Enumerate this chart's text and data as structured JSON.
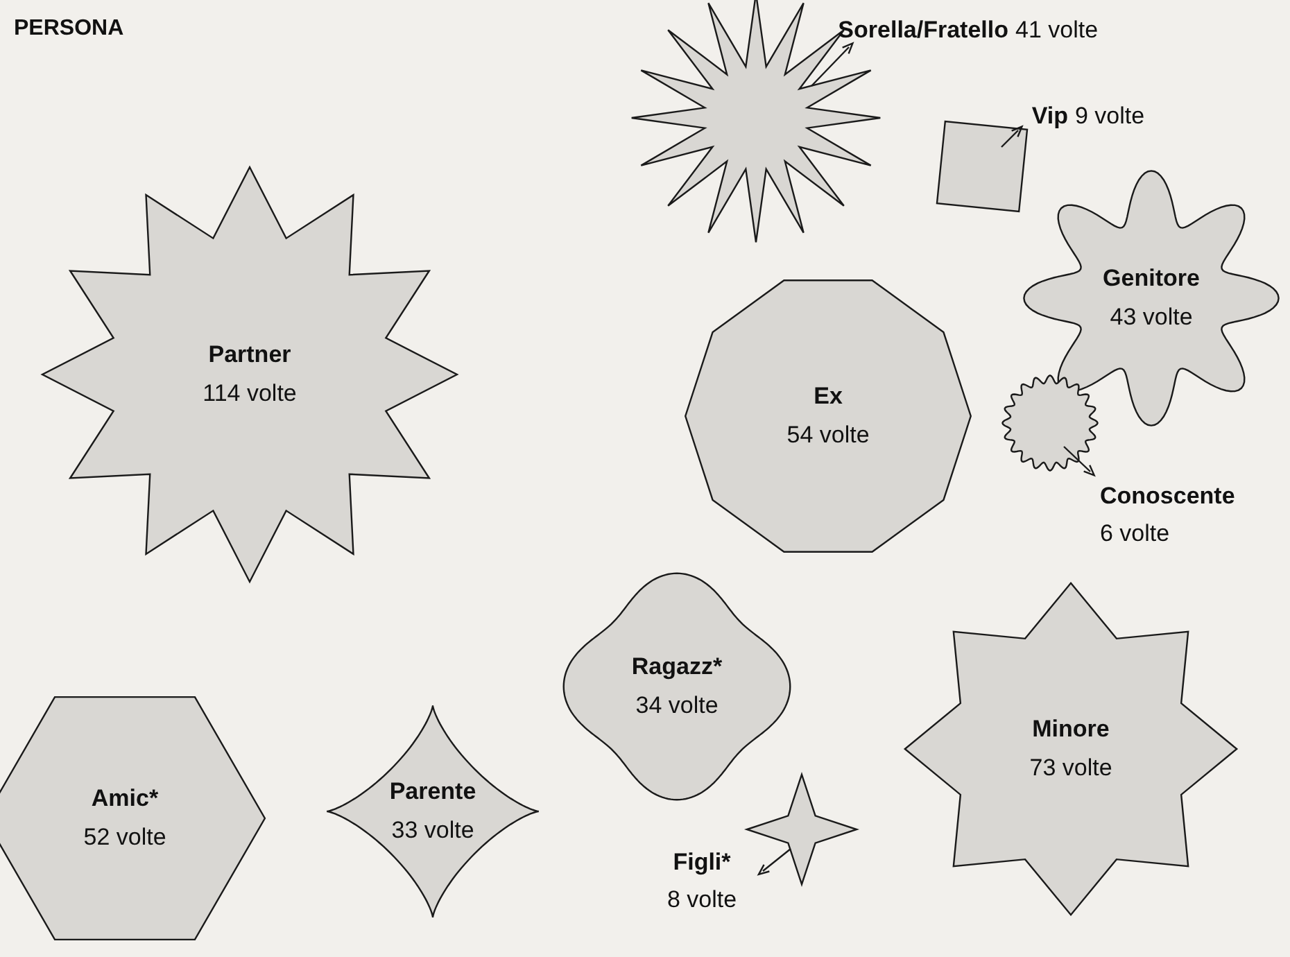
{
  "chart_data": {
    "type": "other",
    "title": "PERSONA",
    "categories": [
      "Partner",
      "Sorella/Fratello",
      "Vip",
      "Genitore",
      "Ex",
      "Conoscente",
      "Minore",
      "Ragazz*",
      "Amic*",
      "Parente",
      "Figli*"
    ],
    "values": [
      114,
      41,
      9,
      43,
      54,
      6,
      73,
      34,
      52,
      33,
      8
    ],
    "value_labels": [
      "114 volte",
      "41 volte",
      "9 volte",
      "43 volte",
      "54 volte",
      "6 volte",
      "73 volte",
      "34 volte",
      "52 volte",
      "33 volte",
      "8 volte"
    ],
    "color": "#d9d7d3"
  }
}
